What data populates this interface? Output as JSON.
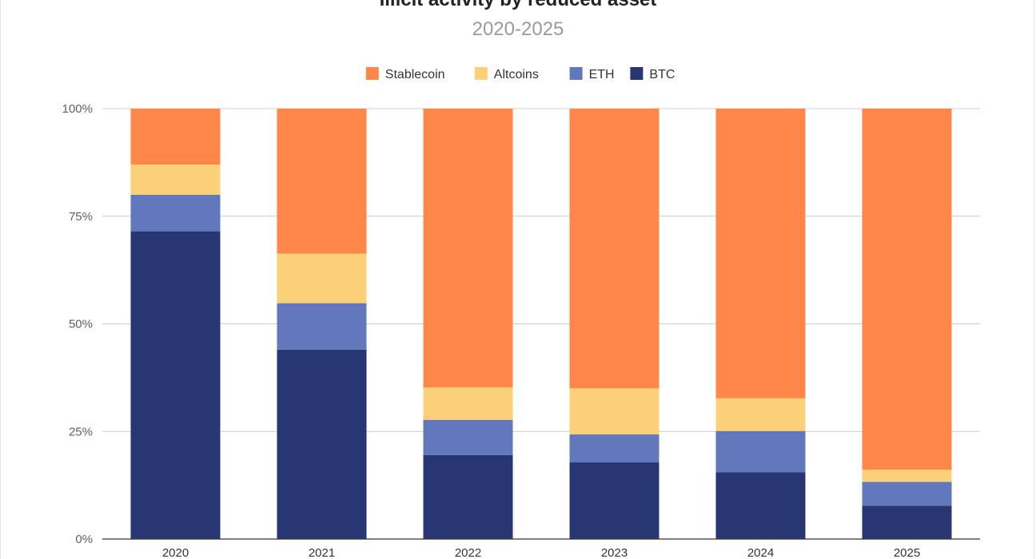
{
  "chart_data": {
    "type": "bar",
    "stacked": true,
    "title": "Illicit activity by reduced asset",
    "subtitle": "2020-2025",
    "categories": [
      "2020",
      "2021",
      "2022",
      "2023",
      "2024",
      "2025"
    ],
    "series": [
      {
        "name": "BTC",
        "color": "#283673",
        "values": [
          71.5,
          44.0,
          19.5,
          17.8,
          15.5,
          7.7
        ]
      },
      {
        "name": "ETH",
        "color": "#6178bd",
        "values": [
          8.5,
          10.8,
          8.2,
          6.5,
          9.6,
          5.6
        ]
      },
      {
        "name": "Altcoins",
        "color": "#fbd079",
        "values": [
          7.0,
          11.5,
          7.5,
          10.7,
          7.6,
          2.8
        ]
      },
      {
        "name": "Stablecoin",
        "color": "#ff874a",
        "values": [
          13.0,
          33.7,
          64.8,
          65.0,
          67.3,
          83.9
        ]
      }
    ],
    "legend_order": [
      "Stablecoin",
      "Altcoins",
      "ETH",
      "BTC"
    ],
    "legend_position": "top",
    "ylim": [
      0,
      100
    ],
    "yticks": [
      "0%",
      "25%",
      "50%",
      "75%",
      "100%"
    ],
    "ytick_values": [
      0,
      25,
      50,
      75,
      100
    ],
    "grid": true
  }
}
